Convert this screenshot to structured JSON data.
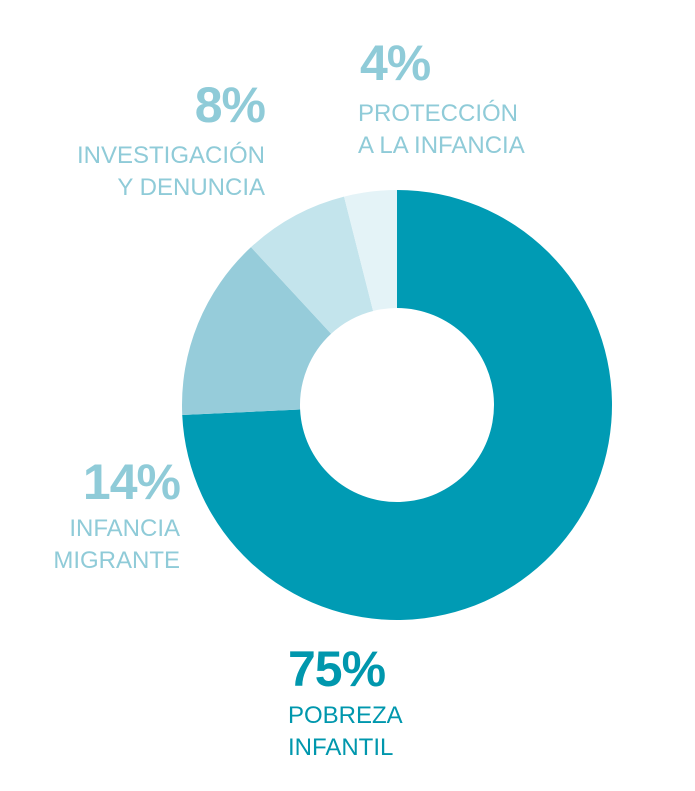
{
  "chart_data": {
    "type": "pie",
    "donut": true,
    "slices": [
      {
        "value": 75,
        "percent_label": "75%",
        "label_lines": [
          "POBREZA",
          "INFANTIL"
        ],
        "color": "#009bb4"
      },
      {
        "value": 14,
        "percent_label": "14%",
        "label_lines": [
          "INFANCIA",
          "MIGRANTE"
        ],
        "color": "#96ccda"
      },
      {
        "value": 8,
        "percent_label": "8%",
        "label_lines": [
          "INVESTIGACIÓN",
          "Y DENUNCIA"
        ],
        "color": "#c3e4ec"
      },
      {
        "value": 4,
        "percent_label": "4%",
        "label_lines": [
          "PROTECCIÓN",
          "A LA INFANCIA"
        ],
        "color": "#e4f3f7"
      }
    ],
    "label_colors": {
      "pobreza": "#0097ad",
      "other": "#8fcbd8"
    }
  }
}
